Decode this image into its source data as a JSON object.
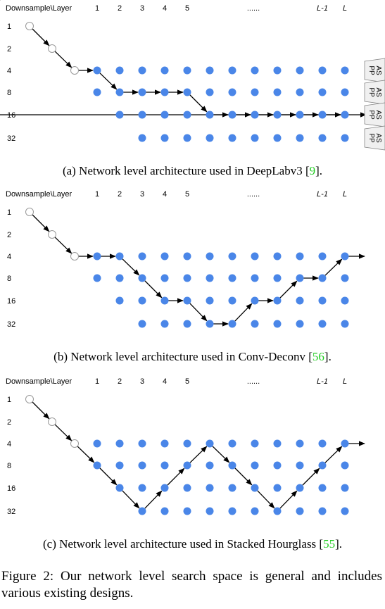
{
  "header": {
    "corner_label": "Downsample\\Layer",
    "layers": [
      "1",
      "2",
      "3",
      "4",
      "5",
      "",
      "",
      "",
      "",
      "......",
      "",
      "L-1",
      "L"
    ],
    "italic_layers": [
      "L-1",
      "L"
    ],
    "downsample_rows": [
      "1",
      "2",
      "4",
      "8",
      "16",
      "32"
    ]
  },
  "colors": {
    "node_fill": "#4a86e8",
    "empty_node_stroke": "#999999",
    "edge": "#000000",
    "ref_green": "#22cc22"
  },
  "aspp_label": [
    "AS",
    "PP"
  ],
  "panels": [
    {
      "id": "a",
      "caption_prefix": "(a) Network level architecture used in DeepLabv3 [",
      "caption_ref": "9",
      "caption_suffix": "].",
      "path_levels": [
        4,
        8,
        8,
        8,
        8,
        16,
        16,
        16,
        16,
        16,
        16,
        16,
        16
      ],
      "exit_arrow": false,
      "aspp_boxes": 4
    },
    {
      "id": "b",
      "caption_prefix": "(b) Network level architecture used in Conv-Deconv [",
      "caption_ref": "56",
      "caption_suffix": "].",
      "path_levels": [
        4,
        4,
        8,
        16,
        16,
        32,
        32,
        16,
        16,
        8,
        8,
        4
      ],
      "exit_arrow": true,
      "aspp_boxes": 0
    },
    {
      "id": "c",
      "caption_prefix": "(c) Network level architecture used in Stacked Hourglass [",
      "caption_ref": "55",
      "caption_suffix": "].",
      "path_levels": [
        8,
        16,
        32,
        16,
        8,
        4,
        8,
        16,
        32,
        16,
        8,
        4
      ],
      "exit_arrow": true,
      "aspp_boxes": 0
    }
  ],
  "figure_caption": "Figure 2: Our network level search space is general and includes various existing designs."
}
